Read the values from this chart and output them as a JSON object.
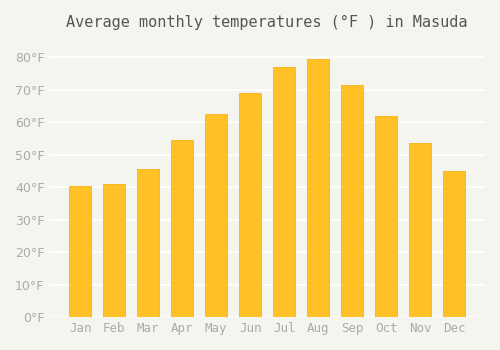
{
  "title": "Average monthly temperatures (°F ) in Masuda",
  "months": [
    "Jan",
    "Feb",
    "Mar",
    "Apr",
    "May",
    "Jun",
    "Jul",
    "Aug",
    "Sep",
    "Oct",
    "Nov",
    "Dec"
  ],
  "values": [
    40.5,
    41.0,
    45.5,
    54.5,
    62.5,
    69.0,
    77.0,
    79.5,
    71.5,
    62.0,
    53.5,
    45.0
  ],
  "bar_color": "#FFC125",
  "bar_edge_color": "#FFA500",
  "background_color": "#F5F5F0",
  "grid_color": "#FFFFFF",
  "ylim": [
    0,
    85
  ],
  "yticks": [
    0,
    10,
    20,
    30,
    40,
    50,
    60,
    70,
    80
  ],
  "title_fontsize": 11,
  "tick_fontsize": 9,
  "tick_color": "#AAAAAA",
  "title_color": "#555555"
}
